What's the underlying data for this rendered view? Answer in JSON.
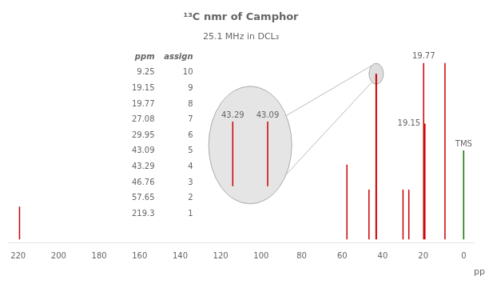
{
  "chart_data": {
    "type": "stem",
    "title": "¹³C nmr of Camphor",
    "subtitle": "25.1 MHz in DCL₃",
    "xlabel": "ppm",
    "xlim": [
      225,
      -5
    ],
    "xticks": [
      220,
      200,
      180,
      160,
      140,
      120,
      100,
      80,
      60,
      40,
      20,
      0
    ],
    "ylim": [
      -0.02,
      1.08
    ],
    "tick_labels": "x",
    "grid": false,
    "series": [
      {
        "color": "#cc0000",
        "x": [
          219.3,
          57.65,
          46.76,
          43.29,
          43.09,
          29.95,
          27.08,
          19.77,
          19.15,
          9.25
        ],
        "values": [
          0.185,
          0.42,
          0.28,
          0.93,
          0.93,
          0.28,
          0.28,
          0.99,
          0.65,
          0.99
        ]
      },
      {
        "color": "#007700",
        "x": [
          0.0
        ],
        "values": [
          0.5
        ]
      }
    ],
    "annotations": [
      {
        "x": 19.77,
        "text": "19.77"
      },
      {
        "x": 19.15,
        "text": "19.15"
      },
      {
        "x": 0.0,
        "text": "TMS"
      },
      {
        "x": 43.29,
        "text": "43.29"
      },
      {
        "x": 43.09,
        "text": "43.09"
      }
    ],
    "zoom": [
      43.29,
      43.09
    ],
    "table": {
      "columns": [
        "ppm",
        "assign"
      ],
      "rows": [
        [
          9.25,
          10
        ],
        [
          19.15,
          9
        ],
        [
          19.77,
          8
        ],
        [
          27.08,
          7
        ],
        [
          29.95,
          6
        ],
        [
          43.09,
          5
        ],
        [
          43.29,
          4
        ],
        [
          46.76,
          3
        ],
        [
          57.65,
          2
        ],
        [
          219.3,
          1
        ]
      ]
    }
  }
}
